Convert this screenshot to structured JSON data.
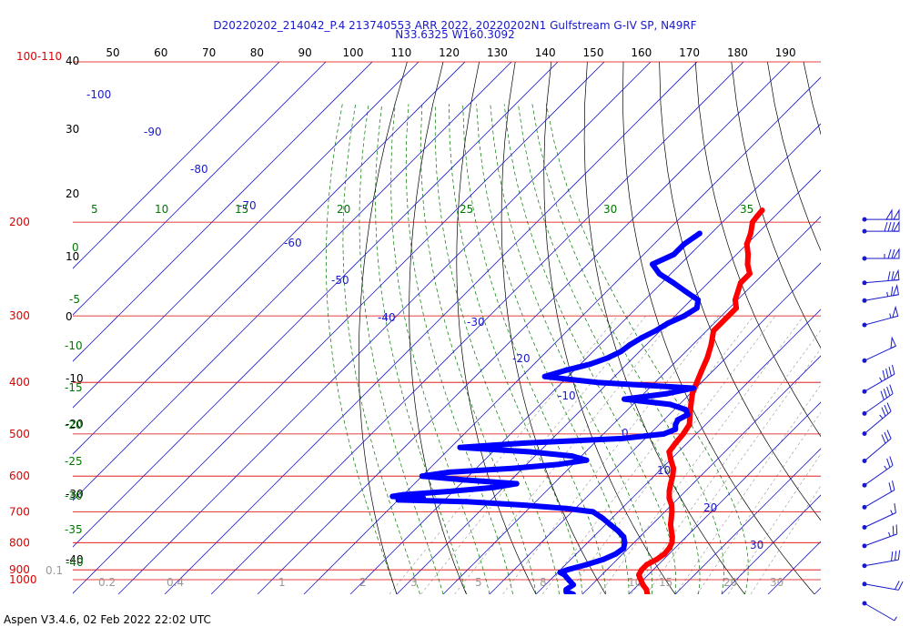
{
  "title_line1": "D20220202_214042_P.4 213740553 ARR 2022, 20220202N1 Gulfstream G-IV SP, N49RF",
  "title_line2": "N33.6325 W160.3092",
  "footer": "Aspen V3.4.6, 02 Feb 2022  22:02 UTC",
  "colors": {
    "pressure_lines": "#dd0000",
    "isotherms": "#1a1acc",
    "dry_adiabats": "#000000",
    "moist_adiabats": "#007700",
    "mixing_ratio": "#999999",
    "temperature_trace": "#ff0000",
    "dewpoint_trace": "#0000ff",
    "wind_barbs": "#1a1acc"
  },
  "chart_data": {
    "type": "line",
    "diagram": "skew-T log-P",
    "pressure_levels_hpa": [
      "100-110",
      "200",
      "300",
      "400",
      "500",
      "600",
      "700",
      "800",
      "900",
      "1000"
    ],
    "fahrenheit_ticks": [
      "50",
      "60",
      "70",
      "80",
      "90",
      "100",
      "110",
      "120",
      "130",
      "140",
      "150",
      "160",
      "170",
      "180",
      "190"
    ],
    "left_axis_labels": [
      "40",
      "30",
      "20",
      "10",
      "0",
      "-10",
      "-20",
      "-30",
      "-40"
    ],
    "isotherm_labels": [
      "-100",
      "-90",
      "-80",
      "-70",
      "-60",
      "-50",
      "-40",
      "-30",
      "-20",
      "-10",
      "0",
      "10",
      "20",
      "30"
    ],
    "moist_adiabat_labels": [
      "5",
      "10",
      "15",
      "20",
      "25",
      "30",
      "35",
      "0",
      "-5",
      "-10",
      "-15",
      "-20",
      "-25",
      "-30",
      "-35",
      "-40"
    ],
    "mixing_ratio_labels": [
      "0.1",
      "0.2",
      "0.4",
      "1",
      "2",
      "3",
      "5",
      "8",
      "10",
      "15",
      "20",
      "30",
      "40"
    ],
    "series": [
      {
        "name": "temperature",
        "pressure": [
          1000,
          980,
          960,
          940,
          920,
          900,
          880,
          860,
          840,
          820,
          800,
          780,
          760,
          740,
          720,
          700,
          680,
          660,
          640,
          620,
          600,
          580,
          560,
          540,
          520,
          500,
          480,
          460,
          440,
          420,
          400,
          380,
          360,
          340,
          320,
          300,
          290,
          280,
          260,
          250,
          240,
          230,
          220,
          210,
          200,
          195,
          190
        ],
        "values": [
          14.0,
          12.8,
          11.0,
          9.5,
          8.0,
          7.5,
          7.5,
          8.5,
          9.0,
          8.8,
          8.2,
          7.0,
          5.5,
          4.0,
          2.8,
          1.5,
          0.0,
          -2.0,
          -3.5,
          -4.8,
          -6.0,
          -7.5,
          -9.8,
          -12.0,
          -12.5,
          -12.8,
          -13.5,
          -15.5,
          -17.5,
          -19.5,
          -21.0,
          -22.5,
          -24.0,
          -26.0,
          -28.5,
          -28.5,
          -28.5,
          -30.5,
          -33.0,
          -33.0,
          -35.5,
          -37.5,
          -40.0,
          -41.5,
          -43.5,
          -43.8,
          -44.0
        ]
      },
      {
        "name": "dewpoint",
        "pressure": [
          1000,
          990,
          980,
          960,
          940,
          920,
          910,
          900,
          880,
          860,
          840,
          820,
          800,
          780,
          760,
          740,
          720,
          700,
          690,
          680,
          670,
          665,
          660,
          655,
          650,
          640,
          630,
          620,
          610,
          600,
          590,
          580,
          570,
          560,
          550,
          540,
          530,
          520,
          510,
          500,
          490,
          480,
          470,
          460,
          450,
          440,
          430,
          420,
          410,
          400,
          390,
          380,
          370,
          360,
          350,
          340,
          330,
          320,
          310,
          300,
          290,
          280,
          270,
          260,
          250,
          240,
          230,
          220,
          210
        ],
        "values": [
          -2.0,
          -4.0,
          -4.5,
          -4.0,
          -6.0,
          -8.0,
          -9.5,
          -8.5,
          -5.5,
          -3.0,
          -1.5,
          -1.0,
          -2.0,
          -3.5,
          -6.0,
          -9.0,
          -12.0,
          -15.5,
          -22.0,
          -32.0,
          -45.0,
          -60.0,
          -55.0,
          -62.0,
          -60.0,
          -50.0,
          -42.0,
          -38.0,
          -50.0,
          -60.0,
          -55.0,
          -42.0,
          -33.0,
          -28.0,
          -32.0,
          -42.0,
          -58.0,
          -45.0,
          -25.0,
          -17.0,
          -15.5,
          -16.5,
          -17.0,
          -16.0,
          -17.5,
          -22.0,
          -33.0,
          -25.0,
          -20.5,
          -42.5,
          -55.0,
          -52.0,
          -48.0,
          -45.5,
          -44.0,
          -43.5,
          -42.5,
          -41.0,
          -40.0,
          -38.0,
          -37.0,
          -38.5,
          -43.0,
          -47.5,
          -52.5,
          -56.0,
          -53.5,
          -53.5,
          -52.5
        ]
      }
    ],
    "wind_barbs": [
      {
        "pressure": 190,
        "speed_kt": 100,
        "direction_deg": 270
      },
      {
        "pressure": 200,
        "speed_kt": 80,
        "direction_deg": 270
      },
      {
        "pressure": 225,
        "speed_kt": 75,
        "direction_deg": 270
      },
      {
        "pressure": 250,
        "speed_kt": 70,
        "direction_deg": 265
      },
      {
        "pressure": 270,
        "speed_kt": 65,
        "direction_deg": 260
      },
      {
        "pressure": 300,
        "speed_kt": 55,
        "direction_deg": 255
      },
      {
        "pressure": 350,
        "speed_kt": 50,
        "direction_deg": 245
      },
      {
        "pressure": 400,
        "speed_kt": 45,
        "direction_deg": 240
      },
      {
        "pressure": 440,
        "speed_kt": 40,
        "direction_deg": 235
      },
      {
        "pressure": 480,
        "speed_kt": 35,
        "direction_deg": 230
      },
      {
        "pressure": 540,
        "speed_kt": 30,
        "direction_deg": 230
      },
      {
        "pressure": 600,
        "speed_kt": 25,
        "direction_deg": 235
      },
      {
        "pressure": 660,
        "speed_kt": 20,
        "direction_deg": 240
      },
      {
        "pressure": 720,
        "speed_kt": 15,
        "direction_deg": 245
      },
      {
        "pressure": 780,
        "speed_kt": 25,
        "direction_deg": 250
      },
      {
        "pressure": 850,
        "speed_kt": 30,
        "direction_deg": 260
      },
      {
        "pressure": 920,
        "speed_kt": 20,
        "direction_deg": 280
      },
      {
        "pressure": 1000,
        "speed_kt": 5,
        "direction_deg": 300
      }
    ]
  }
}
